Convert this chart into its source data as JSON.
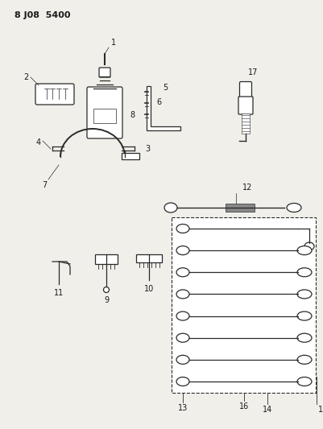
{
  "title": "8 J08  5400",
  "bg_color": "#f0efea",
  "line_color": "#2a2a2a",
  "label_color": "#1a1a1a",
  "figsize": [
    4.01,
    5.33
  ],
  "dpi": 100
}
